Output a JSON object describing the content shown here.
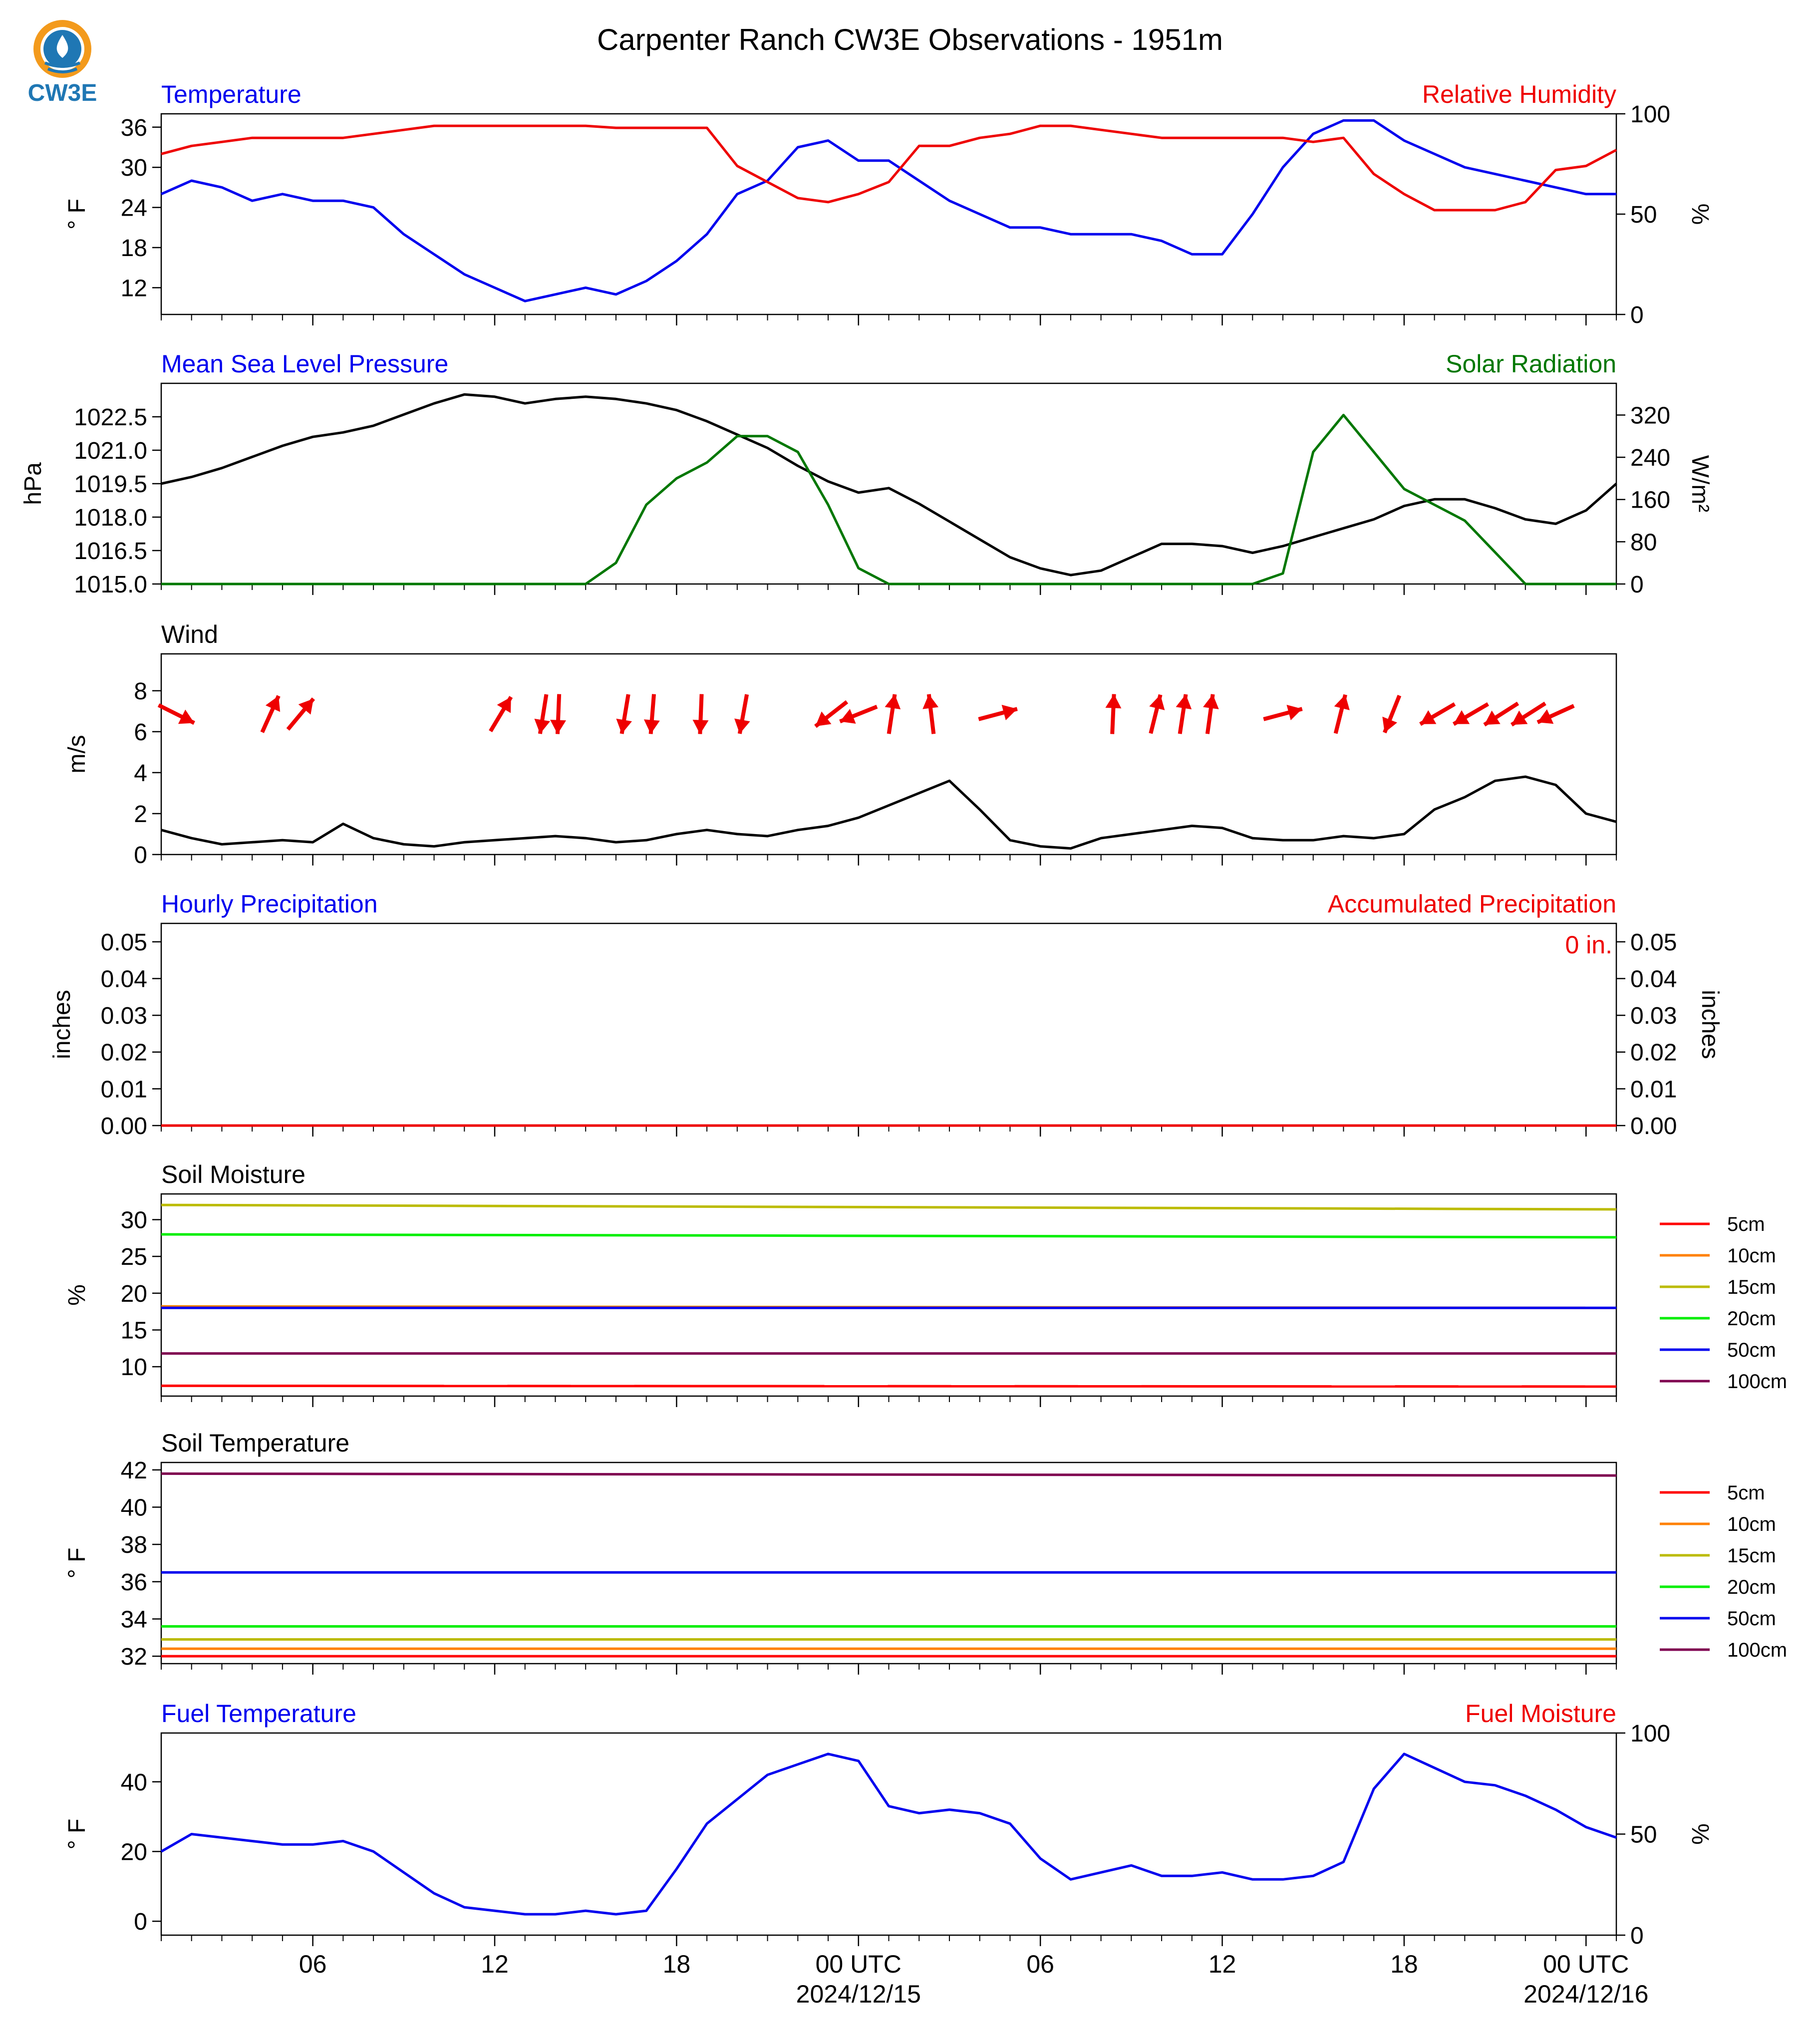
{
  "title": "Carpenter Ranch CW3E Observations - 1951m",
  "logo": {
    "text": "CW3E",
    "icon": "cw3e-drop-logo"
  },
  "colors": {
    "blue": "#0000ee",
    "red": "#ee0000",
    "green": "#007700",
    "black": "#000000"
  },
  "chart_data": [
    {
      "id": "temperature",
      "type": "line",
      "title_left": "Temperature",
      "title_right": "Relative Humidity",
      "ylabel_left": "° F",
      "ylabel_right": "%",
      "ylim_left": [
        8,
        38
      ],
      "yticks_left": [
        12,
        18,
        24,
        30,
        36
      ],
      "ylim_right": [
        0,
        100
      ],
      "yticks_right": [
        0,
        50,
        100
      ],
      "series": [
        {
          "name": "Temperature",
          "axis": "left",
          "color": "#0000ee",
          "x": [
            0,
            1,
            2,
            3,
            4,
            5,
            6,
            7,
            8,
            9,
            10,
            11,
            12,
            13,
            14,
            15,
            16,
            17,
            18,
            19,
            20,
            21,
            22,
            23,
            24,
            25,
            26,
            27,
            28,
            29,
            30,
            31,
            32,
            33,
            34,
            35,
            36,
            37,
            38,
            39,
            40,
            41,
            42,
            43,
            44,
            45,
            46,
            47,
            48
          ],
          "y": [
            26,
            28,
            27,
            25,
            26,
            25,
            25,
            24,
            20,
            17,
            14,
            12,
            10,
            11,
            12,
            11,
            13,
            16,
            20,
            26,
            28,
            33,
            34,
            31,
            31,
            28,
            25,
            23,
            21,
            21,
            20,
            20,
            20,
            19,
            17,
            17,
            23,
            30,
            35,
            37,
            37,
            34,
            32,
            30,
            29,
            28,
            27,
            26,
            26
          ]
        },
        {
          "name": "Relative Humidity",
          "axis": "right",
          "color": "#ee0000",
          "x": [
            0,
            1,
            2,
            3,
            4,
            5,
            6,
            7,
            8,
            9,
            10,
            11,
            12,
            13,
            14,
            15,
            16,
            17,
            18,
            19,
            20,
            21,
            22,
            23,
            24,
            25,
            26,
            27,
            28,
            29,
            30,
            31,
            32,
            33,
            34,
            35,
            36,
            37,
            38,
            39,
            40,
            41,
            42,
            43,
            44,
            45,
            46,
            47,
            48
          ],
          "y": [
            80,
            84,
            86,
            88,
            88,
            88,
            88,
            90,
            92,
            94,
            94,
            94,
            94,
            94,
            94,
            93,
            93,
            93,
            93,
            74,
            66,
            58,
            56,
            60,
            66,
            84,
            84,
            88,
            90,
            94,
            94,
            92,
            90,
            88,
            88,
            88,
            88,
            88,
            86,
            88,
            70,
            60,
            52,
            52,
            52,
            56,
            72,
            74,
            82
          ]
        }
      ]
    },
    {
      "id": "pressure",
      "type": "line",
      "title_left": "Mean Sea Level Pressure",
      "title_right": "Solar Radiation",
      "ylabel_left": "hPa",
      "ylabel_right": "W/m²",
      "ylim_left": [
        1015.0,
        1024.0
      ],
      "yticks_left": [
        1015.0,
        1016.5,
        1018.0,
        1019.5,
        1021.0,
        1022.5
      ],
      "ylim_right": [
        0,
        380
      ],
      "yticks_right": [
        0,
        80,
        160,
        240,
        320
      ],
      "series": [
        {
          "name": "Mean Sea Level Pressure",
          "axis": "left",
          "color": "#000000",
          "x": [
            0,
            1,
            2,
            3,
            4,
            5,
            6,
            7,
            8,
            9,
            10,
            11,
            12,
            13,
            14,
            15,
            16,
            17,
            18,
            19,
            20,
            21,
            22,
            23,
            24,
            25,
            26,
            27,
            28,
            29,
            30,
            31,
            32,
            33,
            34,
            35,
            36,
            37,
            38,
            39,
            40,
            41,
            42,
            43,
            44,
            45,
            46,
            47,
            48
          ],
          "y": [
            1019.5,
            1019.8,
            1020.2,
            1020.7,
            1021.2,
            1021.6,
            1021.8,
            1022.1,
            1022.6,
            1023.1,
            1023.5,
            1023.4,
            1023.1,
            1023.3,
            1023.4,
            1023.3,
            1023.1,
            1022.8,
            1022.3,
            1021.7,
            1021.1,
            1020.3,
            1019.6,
            1019.1,
            1019.3,
            1018.6,
            1017.8,
            1017.0,
            1016.2,
            1015.7,
            1015.4,
            1015.6,
            1016.2,
            1016.8,
            1016.8,
            1016.7,
            1016.4,
            1016.7,
            1017.1,
            1017.5,
            1017.9,
            1018.5,
            1018.8,
            1018.8,
            1018.4,
            1017.9,
            1017.7,
            1018.3,
            1019.5
          ]
        },
        {
          "name": "Solar Radiation",
          "axis": "right",
          "color": "#007700",
          "x": [
            0,
            1,
            2,
            3,
            4,
            5,
            6,
            7,
            8,
            9,
            10,
            11,
            12,
            13,
            14,
            15,
            16,
            17,
            18,
            19,
            20,
            21,
            22,
            23,
            24,
            25,
            26,
            27,
            28,
            29,
            30,
            31,
            32,
            33,
            34,
            35,
            36,
            37,
            38,
            39,
            40,
            41,
            42,
            43,
            44,
            45,
            46,
            47,
            48
          ],
          "y": [
            0,
            0,
            0,
            0,
            0,
            0,
            0,
            0,
            0,
            0,
            0,
            0,
            0,
            0,
            0,
            40,
            150,
            200,
            230,
            280,
            280,
            250,
            150,
            30,
            0,
            0,
            0,
            0,
            0,
            0,
            0,
            0,
            0,
            0,
            0,
            0,
            0,
            20,
            250,
            320,
            250,
            180,
            150,
            120,
            60,
            0,
            0,
            0,
            0
          ]
        }
      ]
    },
    {
      "id": "wind",
      "type": "line",
      "title_left": "Wind",
      "ylabel_left": "m/s",
      "ylim_left": [
        0,
        9.8
      ],
      "yticks_left": [
        0,
        2,
        4,
        6,
        8
      ],
      "series": [
        {
          "name": "Wind",
          "axis": "left",
          "color": "#000000",
          "x": [
            0,
            1,
            2,
            3,
            4,
            5,
            6,
            7,
            8,
            9,
            10,
            11,
            12,
            13,
            14,
            15,
            16,
            17,
            18,
            19,
            20,
            21,
            22,
            23,
            24,
            25,
            26,
            27,
            28,
            29,
            30,
            31,
            32,
            33,
            34,
            35,
            36,
            37,
            38,
            39,
            40,
            41,
            42,
            43,
            44,
            45,
            46,
            47,
            48
          ],
          "y": [
            1.2,
            0.8,
            0.5,
            0.6,
            0.7,
            0.6,
            1.5,
            0.8,
            0.5,
            0.4,
            0.6,
            0.7,
            0.8,
            0.9,
            0.8,
            0.6,
            0.7,
            1.0,
            1.2,
            1.0,
            0.9,
            1.2,
            1.4,
            1.8,
            2.4,
            3.0,
            3.6,
            2.2,
            0.7,
            0.4,
            0.3,
            0.8,
            1.0,
            1.2,
            1.4,
            1.3,
            0.8,
            0.7,
            0.7,
            0.9,
            0.8,
            1.0,
            2.2,
            2.8,
            3.6,
            3.8,
            3.4,
            2.0,
            1.6
          ]
        }
      ],
      "barbs": {
        "color": "#ee0000",
        "x": [
          0.5,
          3.6,
          4.6,
          11.2,
          12.6,
          13.1,
          15.3,
          16.2,
          17.8,
          19.2,
          22.1,
          23.0,
          24.1,
          25.4,
          27.6,
          31.4,
          32.8,
          33.7,
          34.6,
          37.0,
          38.9,
          40.6,
          42.1,
          43.2,
          44.2,
          45.1,
          46.0
        ],
        "u": [
          2.0,
          0.9,
          1.5,
          1.2,
          -0.4,
          -0.1,
          -0.4,
          -0.2,
          -0.1,
          -0.4,
          -1.8,
          -1.5,
          0.3,
          -0.3,
          1.5,
          0.1,
          0.5,
          0.3,
          0.3,
          1.5,
          0.5,
          -0.8,
          -1.2,
          -1.2,
          -1.1,
          -1.1,
          -1.1
        ],
        "v": [
          -1.0,
          2.0,
          1.8,
          2.0,
          -2.5,
          -2.5,
          -2.4,
          -2.5,
          -2.5,
          -2.2,
          -1.4,
          -0.6,
          2.0,
          2.5,
          0.4,
          2.3,
          2.0,
          2.0,
          2.2,
          0.4,
          2.0,
          -2.0,
          -0.7,
          -0.7,
          -0.7,
          -0.7,
          -0.5
        ]
      }
    },
    {
      "id": "precip",
      "type": "line",
      "title_left": "Hourly Precipitation",
      "title_right": "Accumulated Precipitation",
      "ylabel_left": "inches",
      "ylabel_right": "inches",
      "ylim_left": [
        0,
        0.055
      ],
      "yticks_left": [
        0.0,
        0.01,
        0.02,
        0.03,
        0.04,
        0.05
      ],
      "ylim_right": [
        0,
        0.055
      ],
      "yticks_right": [
        0.0,
        0.01,
        0.02,
        0.03,
        0.04,
        0.05
      ],
      "annotation": "0 in.",
      "series": [
        {
          "name": "Hourly Precipitation",
          "axis": "left",
          "color": "#0000ee",
          "x": [
            0,
            48
          ],
          "y": [
            0,
            0
          ]
        },
        {
          "name": "Accumulated Precipitation",
          "axis": "right",
          "color": "#ee0000",
          "x": [
            0,
            48
          ],
          "y": [
            0,
            0
          ]
        }
      ]
    },
    {
      "id": "soil_moisture",
      "type": "line",
      "title_left": "Soil Moisture",
      "ylabel_left": "%",
      "ylim_left": [
        6,
        33.5
      ],
      "yticks_left": [
        10,
        15,
        20,
        25,
        30
      ],
      "legend": "right",
      "series": [
        {
          "name": "5cm",
          "color": "#ff0000",
          "x": [
            0,
            48
          ],
          "y": [
            7.4,
            7.3
          ]
        },
        {
          "name": "10cm",
          "color": "#ff8000",
          "x": [
            0,
            48
          ],
          "y": [
            18.2,
            18.0
          ]
        },
        {
          "name": "15cm",
          "color": "#bbbb00",
          "x": [
            0,
            48
          ],
          "y": [
            32.0,
            31.4
          ]
        },
        {
          "name": "20cm",
          "color": "#00ee00",
          "x": [
            0,
            48
          ],
          "y": [
            28.0,
            27.6
          ]
        },
        {
          "name": "50cm",
          "color": "#0000ee",
          "x": [
            0,
            48
          ],
          "y": [
            18.0,
            18.0
          ]
        },
        {
          "name": "100cm",
          "color": "#7f0050",
          "x": [
            0,
            48
          ],
          "y": [
            11.8,
            11.8
          ]
        }
      ]
    },
    {
      "id": "soil_temperature",
      "type": "line",
      "title_left": "Soil Temperature",
      "ylabel_left": "° F",
      "ylim_left": [
        31.6,
        42.4
      ],
      "yticks_left": [
        32,
        34,
        36,
        38,
        40,
        42
      ],
      "legend": "right",
      "series": [
        {
          "name": "5cm",
          "color": "#ff0000",
          "x": [
            0,
            48
          ],
          "y": [
            32.0,
            32.0
          ]
        },
        {
          "name": "10cm",
          "color": "#ff8000",
          "x": [
            0,
            48
          ],
          "y": [
            32.4,
            32.4
          ]
        },
        {
          "name": "15cm",
          "color": "#bbbb00",
          "x": [
            0,
            48
          ],
          "y": [
            32.9,
            32.9
          ]
        },
        {
          "name": "20cm",
          "color": "#00ee00",
          "x": [
            0,
            48
          ],
          "y": [
            33.6,
            33.6
          ]
        },
        {
          "name": "50cm",
          "color": "#0000ee",
          "x": [
            0,
            48
          ],
          "y": [
            36.5,
            36.5
          ]
        },
        {
          "name": "100cm",
          "color": "#7f0050",
          "x": [
            0,
            48
          ],
          "y": [
            41.8,
            41.7
          ]
        }
      ]
    },
    {
      "id": "fuel",
      "type": "line",
      "title_left": "Fuel Temperature",
      "title_right": "Fuel Moisture",
      "ylabel_left": "° F",
      "ylabel_right": "%",
      "ylim_left": [
        -4,
        54
      ],
      "yticks_left": [
        0,
        20,
        40
      ],
      "ylim_right": [
        0,
        100
      ],
      "yticks_right": [
        0,
        50,
        100
      ],
      "series": [
        {
          "name": "Fuel Temperature",
          "axis": "left",
          "color": "#0000ee",
          "x": [
            0,
            1,
            2,
            3,
            4,
            5,
            6,
            7,
            8,
            9,
            10,
            11,
            12,
            13,
            14,
            15,
            16,
            17,
            18,
            19,
            20,
            21,
            22,
            23,
            24,
            25,
            26,
            27,
            28,
            29,
            30,
            31,
            32,
            33,
            34,
            35,
            36,
            37,
            38,
            39,
            40,
            41,
            42,
            43,
            44,
            45,
            46,
            47,
            48
          ],
          "y": [
            20,
            25,
            24,
            23,
            22,
            22,
            23,
            20,
            14,
            8,
            4,
            3,
            2,
            2,
            3,
            2,
            3,
            15,
            28,
            35,
            42,
            45,
            48,
            46,
            33,
            31,
            32,
            31,
            28,
            18,
            12,
            14,
            16,
            13,
            13,
            14,
            12,
            12,
            13,
            17,
            38,
            48,
            44,
            40,
            39,
            36,
            32,
            27,
            24
          ]
        }
      ]
    }
  ],
  "x_axis": {
    "xlim": [
      0,
      48
    ],
    "major_ticks": [
      {
        "x": 5,
        "label": "06",
        "sublabel": ""
      },
      {
        "x": 11,
        "label": "12",
        "sublabel": ""
      },
      {
        "x": 17,
        "label": "18",
        "sublabel": ""
      },
      {
        "x": 23,
        "label": "00 UTC",
        "sublabel": "2024/12/15"
      },
      {
        "x": 29,
        "label": "06",
        "sublabel": ""
      },
      {
        "x": 35,
        "label": "12",
        "sublabel": ""
      },
      {
        "x": 41,
        "label": "18",
        "sublabel": ""
      },
      {
        "x": 47,
        "label": "00 UTC",
        "sublabel": "2024/12/16"
      }
    ]
  }
}
